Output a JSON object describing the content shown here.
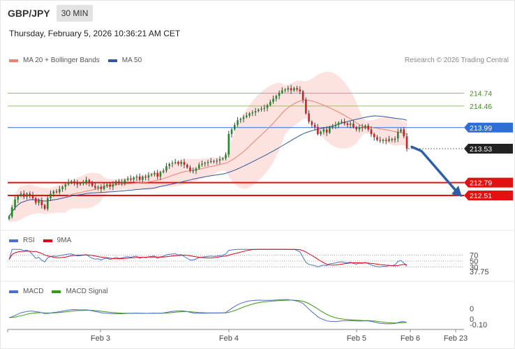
{
  "header": {
    "symbol": "GBP/JPY",
    "timeframe": "30 MIN",
    "datetime": "Thursday, February 5, 2026 10:36:21 AM CET"
  },
  "main_legend": [
    {
      "label": "MA 20 + Bollinger Bands",
      "color": "#f08070"
    },
    {
      "label": "MA 50",
      "color": "#2e5a9c"
    }
  ],
  "credit": "Research © 2026 Trading Central",
  "rsi_legend": [
    {
      "label": "RSI",
      "color": "#4a6fd0"
    },
    {
      "label": "9MA",
      "color": "#e0001a"
    }
  ],
  "macd_legend": [
    {
      "label": "MACD",
      "color": "#4a6fd0"
    },
    {
      "label": "MACD Signal",
      "color": "#3a9a12"
    }
  ],
  "chart_data": {
    "type": "candlestick",
    "price_range": [
      211.75,
      215.25
    ],
    "levels": [
      {
        "value": 214.74,
        "label": "214.74",
        "kind": "resistance",
        "color": "#97c25a"
      },
      {
        "value": 214.46,
        "label": "214.46",
        "kind": "resistance",
        "color": "#97c25a"
      },
      {
        "value": 213.99,
        "label": "213.99",
        "kind": "pivot",
        "color": "#2d6fd6"
      },
      {
        "value": 213.53,
        "label": "213.53",
        "kind": "last",
        "color": "#222222"
      },
      {
        "value": 212.79,
        "label": "212.79",
        "kind": "support",
        "color": "#e41111"
      },
      {
        "value": 212.51,
        "label": "212.51",
        "kind": "support",
        "color": "#e41111"
      }
    ],
    "x_ticks": [
      "Feb 3",
      "Feb 4",
      "Feb 5",
      "Feb 6",
      "Feb 23"
    ],
    "closes": [
      212.05,
      212.25,
      212.42,
      212.5,
      212.55,
      212.48,
      212.55,
      212.52,
      212.45,
      212.35,
      212.4,
      212.3,
      212.22,
      212.45,
      212.55,
      212.6,
      212.58,
      212.65,
      212.7,
      212.75,
      212.8,
      212.82,
      212.78,
      212.75,
      212.77,
      212.8,
      212.85,
      212.78,
      212.72,
      212.68,
      212.7,
      212.65,
      212.72,
      212.75,
      212.7,
      212.75,
      212.82,
      212.78,
      212.8,
      212.85,
      212.88,
      212.86,
      212.9,
      212.92,
      212.85,
      212.92,
      212.9,
      212.95,
      212.97,
      213.0,
      212.92,
      213.02,
      213.05,
      213.15,
      213.2,
      213.22,
      213.24,
      213.2,
      213.24,
      213.18,
      213.12,
      213.05,
      213.05,
      213.1,
      213.18,
      213.2,
      213.22,
      213.24,
      213.26,
      213.25,
      213.27,
      213.3,
      213.32,
      213.4,
      213.85,
      213.95,
      214.05,
      214.15,
      214.18,
      214.22,
      214.25,
      214.3,
      214.32,
      214.35,
      214.38,
      214.4,
      214.42,
      214.48,
      214.55,
      214.62,
      214.68,
      214.75,
      214.8,
      214.82,
      214.85,
      214.8,
      214.85,
      214.82,
      214.78,
      214.6,
      214.3,
      214.12,
      214.05,
      214.0,
      213.85,
      213.9,
      213.95,
      213.88,
      214.0,
      214.02,
      214.05,
      214.1,
      214.12,
      214.08,
      214.05,
      214.08,
      214.0,
      213.95,
      214.0,
      213.98,
      214.03,
      213.95,
      213.85,
      213.78,
      213.72,
      213.7,
      213.72,
      213.7,
      213.74,
      213.72,
      213.75,
      213.9,
      213.95,
      213.8,
      213.53
    ],
    "forecast": {
      "from": 213.57,
      "to": 212.51
    }
  },
  "rsi": {
    "levels": [
      "70",
      "50",
      "30"
    ],
    "value": "37.75",
    "value_color": "#4a6fd0"
  },
  "macd": {
    "levels": [
      "0",
      "0"
    ],
    "value": "-0.10",
    "value_color": "#4a6fd0"
  }
}
